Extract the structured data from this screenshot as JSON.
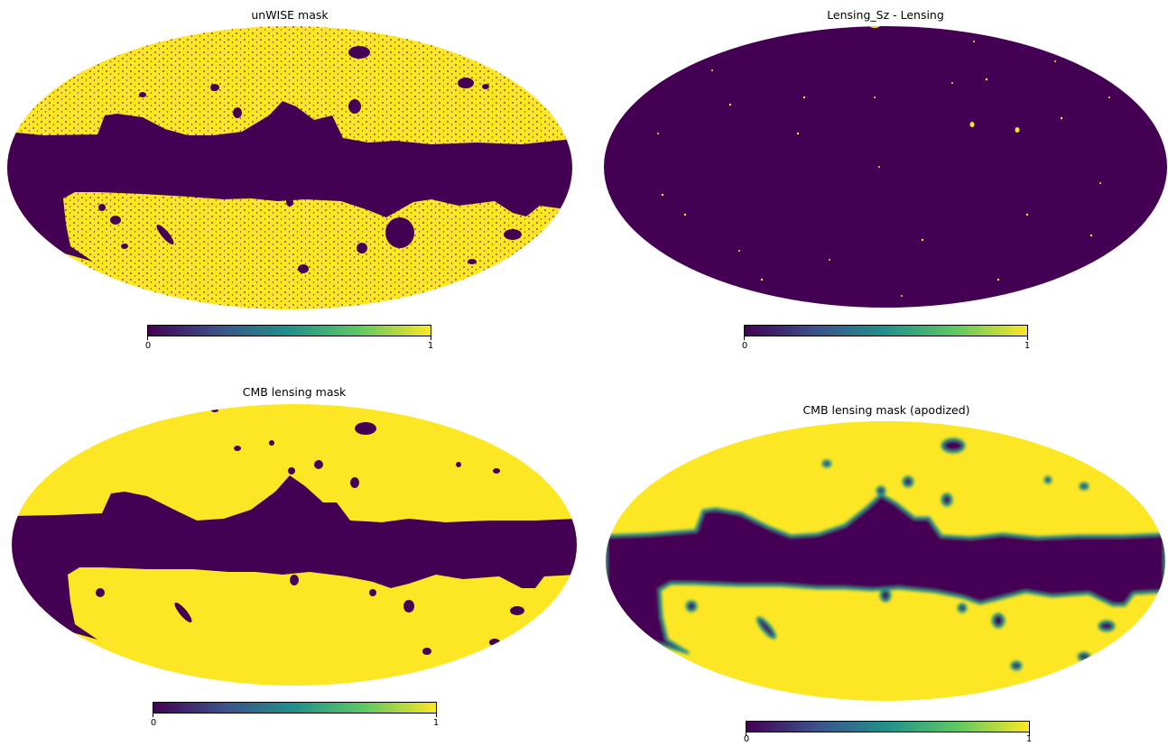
{
  "panels": [
    {
      "title": "unWISE mask",
      "colorbar": {
        "min_label": "0",
        "max_label": "1"
      }
    },
    {
      "title": "Lensing_Sz - Lensing",
      "colorbar": {
        "min_label": "0",
        "max_label": "1"
      }
    },
    {
      "title": "CMB lensing mask",
      "colorbar": {
        "min_label": "0",
        "max_label": "1"
      }
    },
    {
      "title": "CMB lensing mask (apodized)",
      "colorbar": {
        "min_label": "0",
        "max_label": "1"
      }
    }
  ],
  "colors": {
    "masked": "#440154",
    "unmasked": "#fde725",
    "apodized_edge": "#21918c",
    "colormap": "viridis"
  }
}
